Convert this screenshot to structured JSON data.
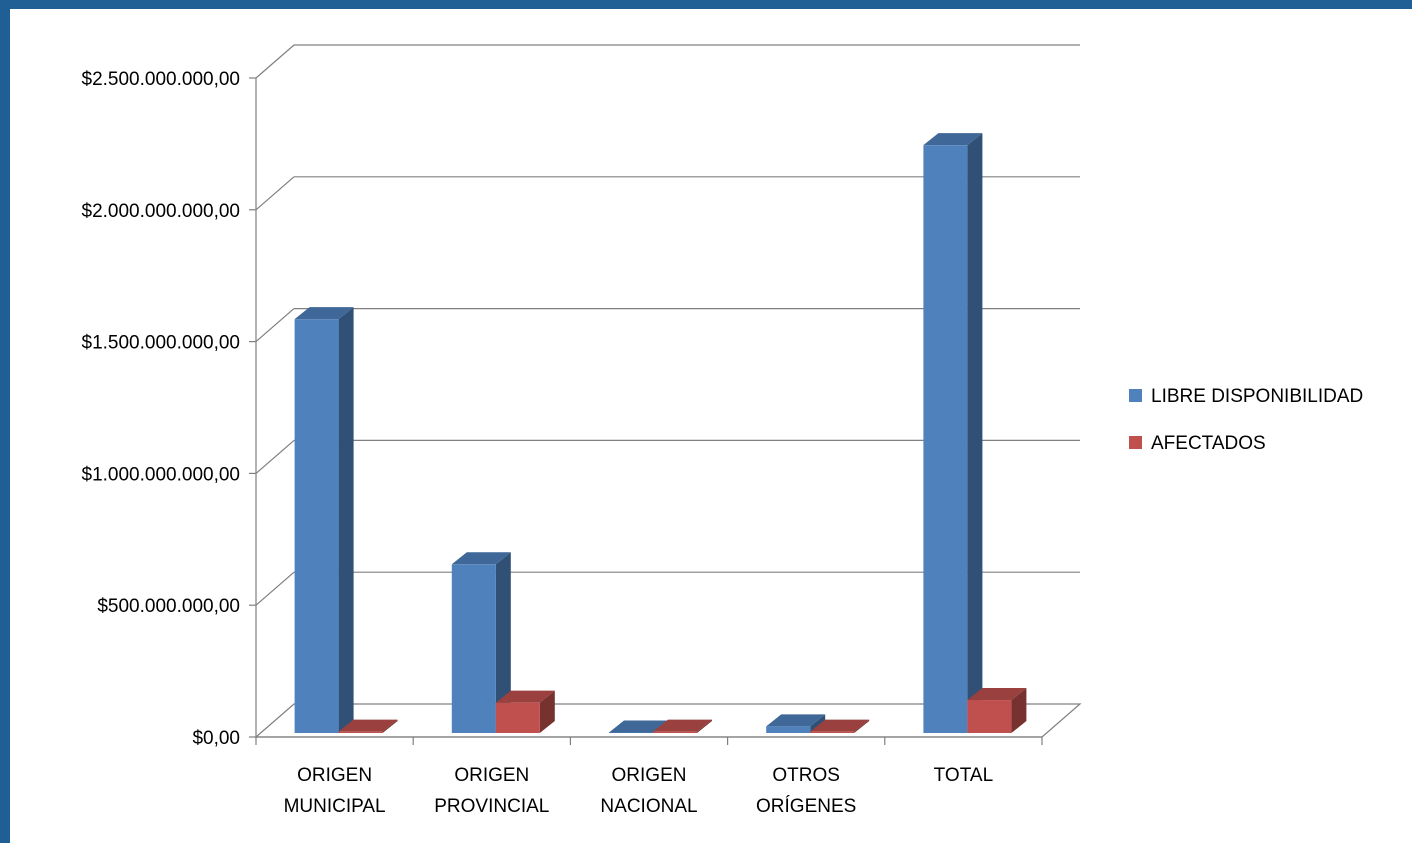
{
  "chart_data": {
    "type": "bar",
    "title": "",
    "xlabel": "",
    "ylabel": "",
    "categories": [
      [
        "ORIGEN",
        "MUNICIPAL"
      ],
      [
        "ORIGEN",
        "PROVINCIAL"
      ],
      [
        "ORIGEN",
        "NACIONAL"
      ],
      [
        "OTROS",
        "ORÍGENES"
      ],
      [
        "TOTAL"
      ]
    ],
    "series": [
      {
        "name": "LIBRE DISPONIBILIDAD",
        "color": "#4f81bd",
        "values": [
          1570000000,
          640000000,
          2000000,
          25000000,
          2230000000
        ]
      },
      {
        "name": "AFECTADOS",
        "color": "#c0504d",
        "values": [
          5000000,
          115000000,
          5000000,
          5000000,
          125000000
        ]
      }
    ],
    "ylim": [
      0,
      2500000000
    ],
    "yticks": [
      {
        "value": 0,
        "label": "$0,00"
      },
      {
        "value": 500000000,
        "label": "$500.000.000,00"
      },
      {
        "value": 1000000000,
        "label": "$1.000.000.000,00"
      },
      {
        "value": 1500000000,
        "label": "$1.500.000.000,00"
      },
      {
        "value": 2000000000,
        "label": "$2.000.000.000,00"
      },
      {
        "value": 2500000000,
        "label": "$2.500.000.000,00"
      }
    ],
    "grid": true,
    "style": "3d",
    "legend_position": "right"
  }
}
